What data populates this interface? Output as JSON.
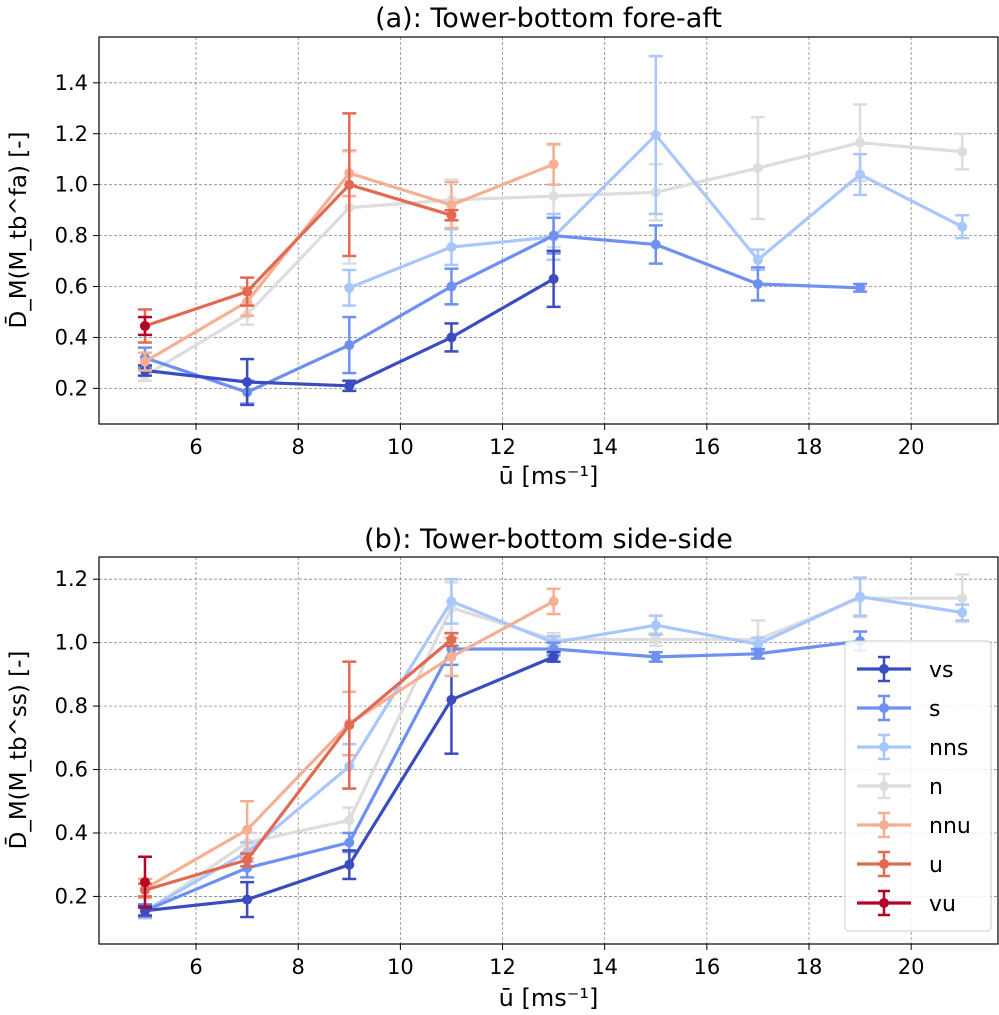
{
  "chart_data": [
    {
      "type": "line",
      "title": "(a): Tower-bottom fore-aft",
      "xlabel": "ū [ms⁻¹]",
      "ylabel": "D̄_M(M_tb^fa) [-]",
      "xlim": [
        4.1,
        21.7
      ],
      "ylim": [
        0.06,
        1.58
      ],
      "xticks": [
        6,
        8,
        10,
        12,
        14,
        16,
        18,
        20
      ],
      "yticks": [
        0.2,
        0.4,
        0.6,
        0.8,
        1.0,
        1.2,
        1.4
      ],
      "ytick_labels": [
        "0.2",
        "0.4",
        "0.6",
        "0.8",
        "1.0",
        "1.2",
        "1.4"
      ],
      "grid": true,
      "legend": false,
      "series": [
        {
          "name": "n",
          "color": "#dddddd",
          "points": [
            [
              5,
              0.25,
              0.02
            ],
            [
              7,
              0.49,
              0.04
            ],
            [
              9,
              0.91,
              0.22
            ],
            [
              11,
              0.94,
              0.08
            ],
            [
              13,
              0.955,
              0.2
            ],
            [
              15,
              0.97,
              0.11
            ],
            [
              17,
              1.065,
              0.2
            ],
            [
              19,
              1.165,
              0.15
            ],
            [
              21,
              1.13,
              0.07
            ]
          ]
        },
        {
          "name": "nns",
          "color": "#aac7fd",
          "points": [
            [
              9,
              0.595,
              0.07
            ],
            [
              11,
              0.755,
              0.07
            ],
            [
              13,
              0.795,
              0.09
            ],
            [
              15,
              1.195,
              0.31
            ],
            [
              17,
              0.705,
              0.04
            ],
            [
              19,
              1.04,
              0.08
            ],
            [
              21,
              0.835,
              0.045
            ]
          ]
        },
        {
          "name": "s",
          "color": "#6e91f1",
          "points": [
            [
              5,
              0.32,
              0.04
            ],
            [
              7,
              0.185,
              0.045
            ],
            [
              9,
              0.37,
              0.11
            ],
            [
              11,
              0.6,
              0.07
            ],
            [
              13,
              0.8,
              0.07
            ],
            [
              15,
              0.765,
              0.075
            ],
            [
              17,
              0.61,
              0.065
            ],
            [
              19,
              0.595,
              0.015
            ]
          ]
        },
        {
          "name": "vs",
          "color": "#3b4cc0",
          "points": [
            [
              5,
              0.27,
              0.02
            ],
            [
              7,
              0.225,
              0.09
            ],
            [
              9,
              0.21,
              0.02
            ],
            [
              11,
              0.4,
              0.055
            ],
            [
              13,
              0.63,
              0.11
            ]
          ]
        },
        {
          "name": "nnu",
          "color": "#f5b094",
          "points": [
            [
              5,
              0.305,
              0.035
            ],
            [
              7,
              0.54,
              0.055
            ],
            [
              9,
              1.045,
              0.09
            ],
            [
              11,
              0.92,
              0.09
            ],
            [
              13,
              1.08,
              0.08
            ]
          ]
        },
        {
          "name": "u",
          "color": "#e26952",
          "points": [
            [
              5,
              0.445,
              0.065
            ],
            [
              7,
              0.58,
              0.055
            ],
            [
              9,
              1.0,
              0.28
            ],
            [
              11,
              0.88,
              0.02
            ]
          ]
        },
        {
          "name": "vu",
          "color": "#b40426",
          "points": [
            [
              5,
              0.445,
              0.035
            ]
          ]
        }
      ]
    },
    {
      "type": "line",
      "title": "(b): Tower-bottom side-side",
      "xlabel": "ū [ms⁻¹]",
      "ylabel": "D̄_M(M_tb^ss) [-]",
      "xlim": [
        4.1,
        21.7
      ],
      "ylim": [
        0.05,
        1.27
      ],
      "xticks": [
        6,
        8,
        10,
        12,
        14,
        16,
        18,
        20
      ],
      "yticks": [
        0.2,
        0.4,
        0.6,
        0.8,
        1.0,
        1.2
      ],
      "ytick_labels": [
        "0.2",
        "0.4",
        "0.6",
        "0.8",
        "1.0",
        "1.2"
      ],
      "grid": true,
      "legend": "right",
      "series": [
        {
          "name": "n",
          "color": "#dddddd",
          "points": [
            [
              5,
              0.15,
              0.02
            ],
            [
              7,
              0.37,
              0.03
            ],
            [
              9,
              0.44,
              0.04
            ],
            [
              11,
              1.11,
              0.08
            ],
            [
              13,
              1.01,
              0.02
            ],
            [
              15,
              1.01,
              0.02
            ],
            [
              17,
              1.01,
              0.06
            ],
            [
              19,
              1.14,
              0.06
            ],
            [
              21,
              1.14,
              0.075
            ]
          ]
        },
        {
          "name": "nns",
          "color": "#aac7fd",
          "points": [
            [
              5,
              0.155,
              0.02
            ],
            [
              7,
              0.34,
              0.03
            ],
            [
              9,
              0.61,
              0.07
            ],
            [
              11,
              1.13,
              0.07
            ],
            [
              13,
              1.0,
              0.02
            ],
            [
              15,
              1.055,
              0.03
            ],
            [
              17,
              0.995,
              0.02
            ],
            [
              19,
              1.145,
              0.06
            ],
            [
              21,
              1.095,
              0.025
            ]
          ]
        },
        {
          "name": "s",
          "color": "#6e91f1",
          "points": [
            [
              5,
              0.155,
              0.02
            ],
            [
              7,
              0.29,
              0.03
            ],
            [
              9,
              0.37,
              0.03
            ],
            [
              11,
              0.98,
              0.05
            ],
            [
              13,
              0.98,
              0.02
            ],
            [
              15,
              0.955,
              0.015
            ],
            [
              17,
              0.965,
              0.015
            ],
            [
              19,
              1.005,
              0.03
            ]
          ]
        },
        {
          "name": "vs",
          "color": "#3b4cc0",
          "points": [
            [
              5,
              0.155,
              0.015
            ],
            [
              7,
              0.19,
              0.055
            ],
            [
              9,
              0.3,
              0.045
            ],
            [
              11,
              0.82,
              0.17
            ],
            [
              13,
              0.955,
              0.015
            ]
          ]
        },
        {
          "name": "nnu",
          "color": "#f5b094",
          "points": [
            [
              5,
              0.225,
              0.03
            ],
            [
              7,
              0.41,
              0.09
            ],
            [
              9,
              0.745,
              0.1
            ],
            [
              11,
              0.955,
              0.06
            ],
            [
              13,
              1.13,
              0.04
            ]
          ]
        },
        {
          "name": "u",
          "color": "#e26952",
          "points": [
            [
              5,
              0.22,
              0.02
            ],
            [
              7,
              0.315,
              0.02
            ],
            [
              9,
              0.74,
              0.2
            ],
            [
              11,
              1.01,
              0.02
            ]
          ]
        },
        {
          "name": "vu",
          "color": "#b40426",
          "points": [
            [
              5,
              0.245,
              0.08
            ]
          ]
        }
      ],
      "legend_order": [
        "vs",
        "s",
        "nns",
        "n",
        "nnu",
        "u",
        "vu"
      ]
    }
  ]
}
